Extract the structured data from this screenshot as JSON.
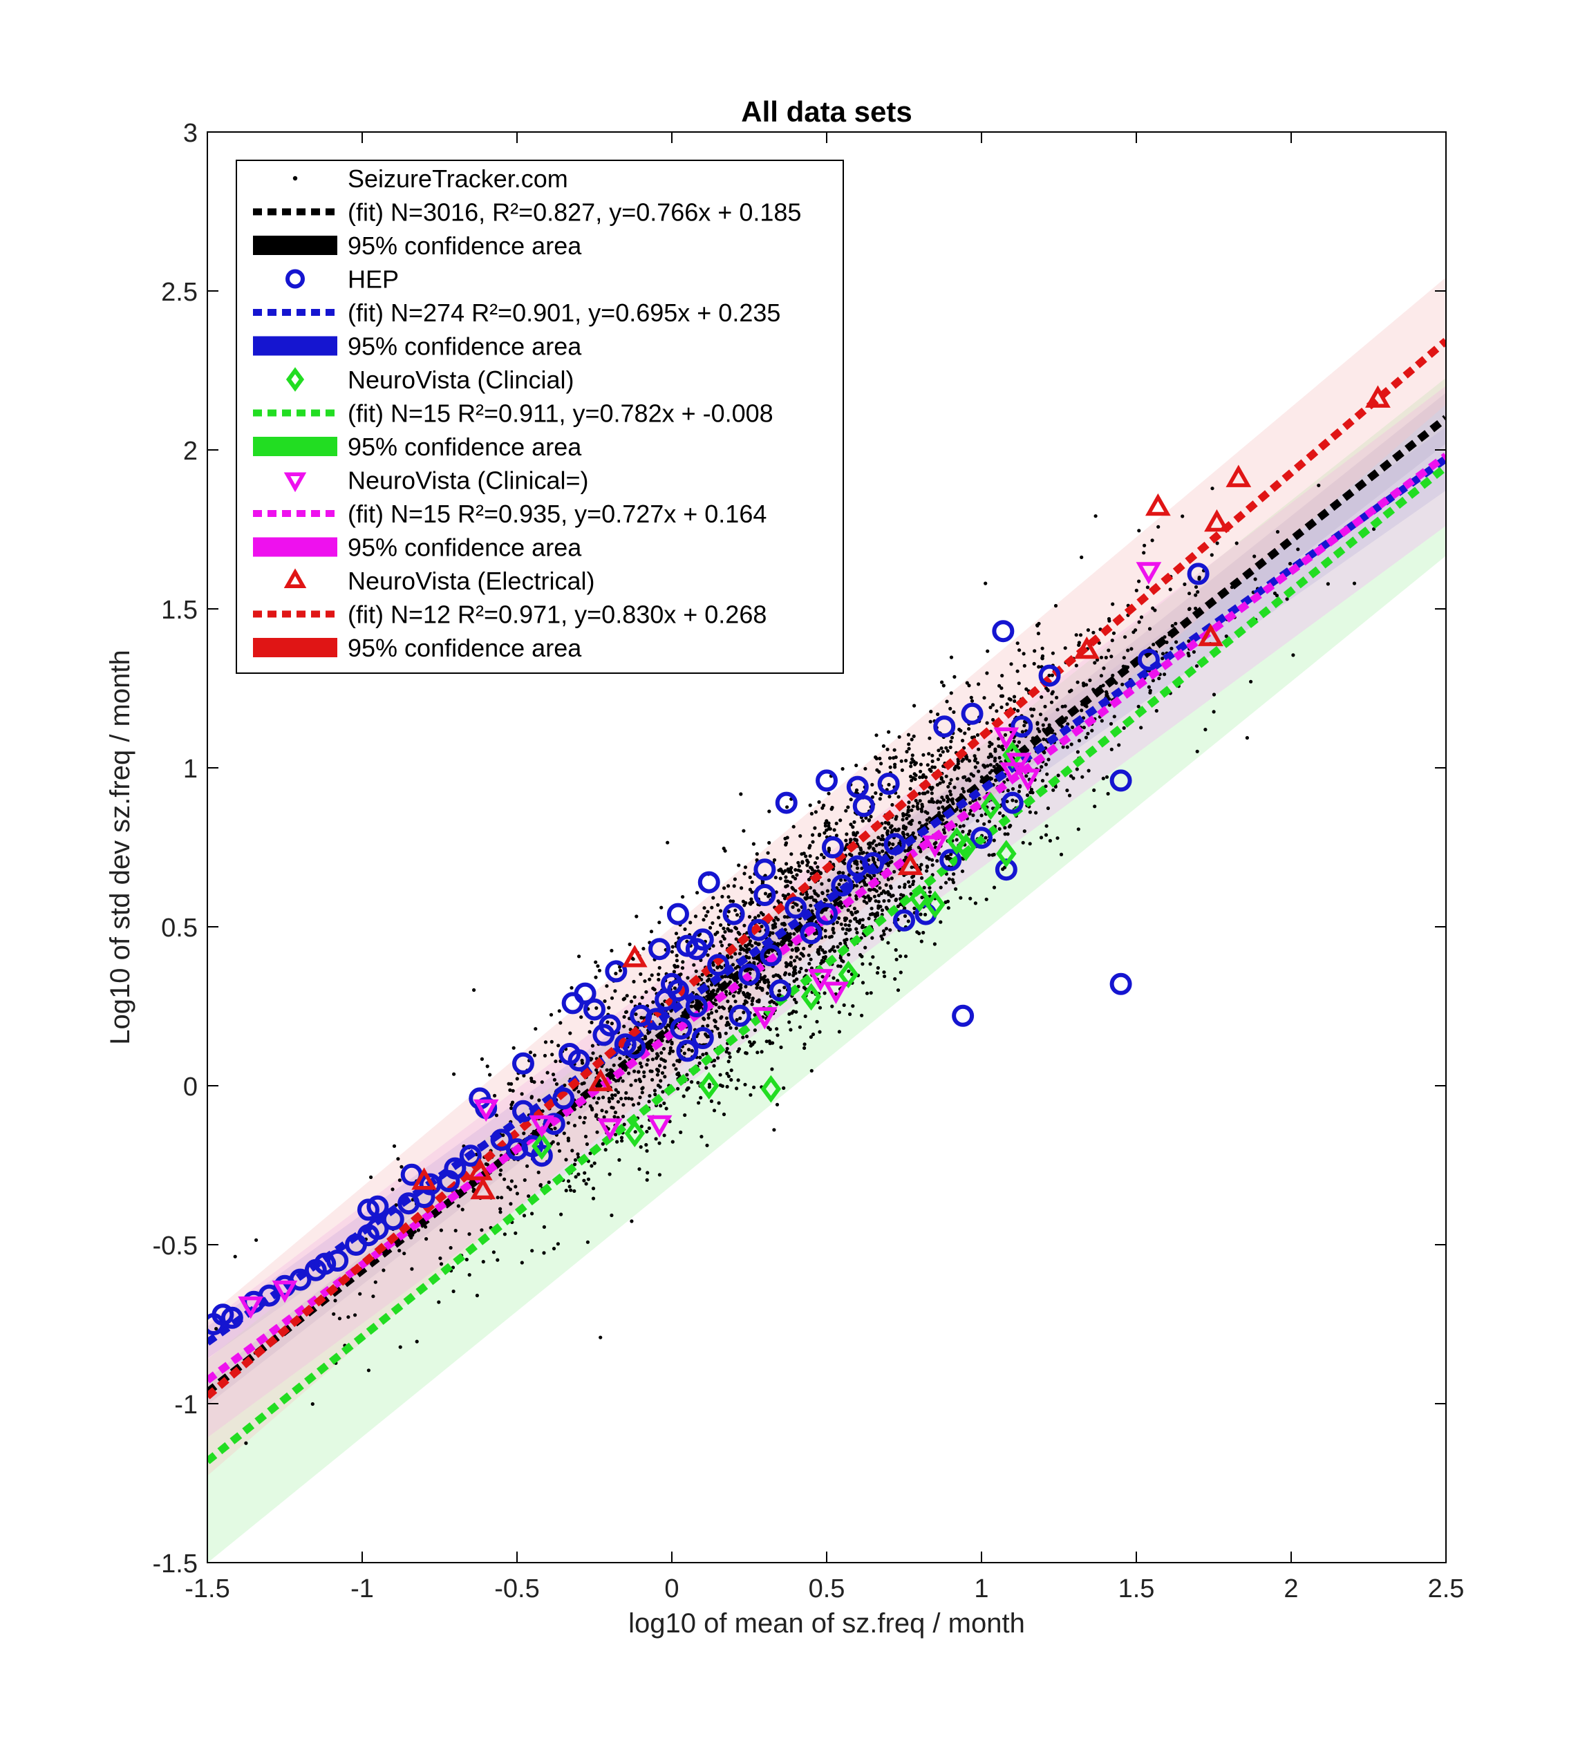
{
  "chart_data": {
    "type": "scatter",
    "title": "All data sets",
    "xlabel": "log10 of mean of sz.freq / month",
    "ylabel": "Log10 of std dev sz.freq / month",
    "xlim": [
      -1.5,
      2.5
    ],
    "ylim": [
      -1.5,
      3
    ],
    "xticks": [
      -1.5,
      -1,
      -0.5,
      0,
      0.5,
      1,
      1.5,
      2,
      2.5
    ],
    "xtick_labels": [
      "-1.5",
      "-1",
      "-0.5",
      "0",
      "0.5",
      "1",
      "1.5",
      "2",
      "2.5"
    ],
    "yticks": [
      -1.5,
      -1,
      -0.5,
      0,
      0.5,
      1,
      1.5,
      2,
      2.5,
      3
    ],
    "ytick_labels": [
      "-1.5",
      "-1",
      "-0.5",
      "0",
      "0.5",
      "1",
      "1.5",
      "2",
      "2.5",
      "3"
    ],
    "grid": false,
    "legend_position": "top-left",
    "legend": [
      {
        "label": "SeizureTracker.com",
        "symbol": "dot",
        "color": "#000000"
      },
      {
        "label": "(fit) N=3016, R²=0.827, y=0.766x + 0.185",
        "symbol": "dashed-line",
        "color": "#000000"
      },
      {
        "label": "95% confidence area",
        "symbol": "band",
        "color": "#000000"
      },
      {
        "label": "HEP",
        "symbol": "circle",
        "color": "#1515d0"
      },
      {
        "label": "(fit) N=274 R²=0.901, y=0.695x + 0.235",
        "symbol": "dashed-line",
        "color": "#1515d0"
      },
      {
        "label": "95% confidence area",
        "symbol": "band",
        "color": "#1515d0"
      },
      {
        "label": "NeuroVista (Clincial)",
        "symbol": "diamond",
        "color": "#22dd22"
      },
      {
        "label": "(fit) N=15 R²=0.911, y=0.782x + -0.008",
        "symbol": "dashed-line",
        "color": "#22dd22"
      },
      {
        "label": "95% confidence area",
        "symbol": "band",
        "color": "#22dd22"
      },
      {
        "label": "NeuroVista (Clinical=)",
        "symbol": "triangle-down",
        "color": "#ee11ee"
      },
      {
        "label": "(fit) N=15 R²=0.935, y=0.727x + 0.164",
        "symbol": "dashed-line",
        "color": "#ee11ee"
      },
      {
        "label": "95% confidence area",
        "symbol": "band",
        "color": "#ee11ee"
      },
      {
        "label": "NeuroVista (Electrical)",
        "symbol": "triangle-up",
        "color": "#e01515"
      },
      {
        "label": "(fit) N=12 R²=0.971, y=0.830x + 0.268",
        "symbol": "dashed-line",
        "color": "#e01515"
      },
      {
        "label": "95% confidence area",
        "symbol": "band",
        "color": "#e01515"
      }
    ],
    "fits": [
      {
        "name": "SeizureTracker.com",
        "slope": 0.766,
        "intercept": 0.185,
        "color": "#000000",
        "band_color": "#8a8ab0",
        "band_halfwidth": [
          0.04,
          0.08
        ]
      },
      {
        "name": "HEP",
        "slope": 0.695,
        "intercept": 0.235,
        "color": "#1515d0",
        "band_color": "#9a9ae0",
        "band_halfwidth": [
          0.05,
          0.1
        ]
      },
      {
        "name": "NeuroVista (Clincial)",
        "slope": 0.782,
        "intercept": -0.008,
        "color": "#22dd22",
        "band_color": "#b0f0b0",
        "band_halfwidth": [
          0.32,
          0.28
        ]
      },
      {
        "name": "NeuroVista (Clinical=)",
        "slope": 0.727,
        "intercept": 0.164,
        "color": "#ee11ee",
        "band_color": "#f4b0f4",
        "band_halfwidth": [
          0.18,
          0.22
        ]
      },
      {
        "name": "NeuroVista (Electrical)",
        "slope": 0.83,
        "intercept": 0.268,
        "color": "#e01515",
        "band_color": "#f6c4c4",
        "band_halfwidth": [
          0.25,
          0.2
        ]
      }
    ],
    "series": [
      {
        "name": "HEP",
        "marker": "circle",
        "color": "#1515d0",
        "points": [
          [
            -1.48,
            -0.75
          ],
          [
            -1.45,
            -0.72
          ],
          [
            -1.42,
            -0.73
          ],
          [
            -1.35,
            -0.68
          ],
          [
            -1.3,
            -0.66
          ],
          [
            -1.25,
            -0.63
          ],
          [
            -1.2,
            -0.61
          ],
          [
            -1.15,
            -0.58
          ],
          [
            -1.12,
            -0.56
          ],
          [
            -1.08,
            -0.55
          ],
          [
            -1.02,
            -0.5
          ],
          [
            -0.98,
            -0.47
          ],
          [
            -0.95,
            -0.45
          ],
          [
            -0.98,
            -0.39
          ],
          [
            -0.95,
            -0.38
          ],
          [
            -0.9,
            -0.42
          ],
          [
            -0.85,
            -0.37
          ],
          [
            -0.84,
            -0.28
          ],
          [
            -0.8,
            -0.35
          ],
          [
            -0.78,
            -0.31
          ],
          [
            -0.72,
            -0.3
          ],
          [
            -0.7,
            -0.26
          ],
          [
            -0.65,
            -0.22
          ],
          [
            -0.62,
            -0.04
          ],
          [
            -0.6,
            -0.07
          ],
          [
            -0.55,
            -0.17
          ],
          [
            -0.5,
            -0.2
          ],
          [
            -0.48,
            -0.08
          ],
          [
            -0.48,
            0.07
          ],
          [
            -0.45,
            -0.19
          ],
          [
            -0.42,
            -0.22
          ],
          [
            -0.38,
            -0.12
          ],
          [
            -0.35,
            -0.04
          ],
          [
            -0.33,
            0.1
          ],
          [
            -0.3,
            0.08
          ],
          [
            -0.32,
            0.26
          ],
          [
            -0.28,
            0.29
          ],
          [
            -0.25,
            0.24
          ],
          [
            -0.22,
            0.16
          ],
          [
            -0.2,
            0.19
          ],
          [
            -0.18,
            0.36
          ],
          [
            -0.15,
            0.13
          ],
          [
            -0.12,
            0.12
          ],
          [
            -0.1,
            0.22
          ],
          [
            -0.05,
            0.21
          ],
          [
            -0.04,
            0.43
          ],
          [
            -0.02,
            0.27
          ],
          [
            0.0,
            0.32
          ],
          [
            0.02,
            0.3
          ],
          [
            0.03,
            0.18
          ],
          [
            0.02,
            0.54
          ],
          [
            0.05,
            0.44
          ],
          [
            0.08,
            0.43
          ],
          [
            0.1,
            0.46
          ],
          [
            0.08,
            0.25
          ],
          [
            0.05,
            0.11
          ],
          [
            0.1,
            0.15
          ],
          [
            0.12,
            0.64
          ],
          [
            0.15,
            0.38
          ],
          [
            0.2,
            0.54
          ],
          [
            0.22,
            0.22
          ],
          [
            0.25,
            0.35
          ],
          [
            0.28,
            0.49
          ],
          [
            0.3,
            0.6
          ],
          [
            0.3,
            0.68
          ],
          [
            0.32,
            0.41
          ],
          [
            0.35,
            0.3
          ],
          [
            0.37,
            0.89
          ],
          [
            0.4,
            0.56
          ],
          [
            0.45,
            0.48
          ],
          [
            0.5,
            0.54
          ],
          [
            0.5,
            0.96
          ],
          [
            0.52,
            0.75
          ],
          [
            0.55,
            0.63
          ],
          [
            0.6,
            0.69
          ],
          [
            0.6,
            0.94
          ],
          [
            0.62,
            0.88
          ],
          [
            0.65,
            0.7
          ],
          [
            0.7,
            0.95
          ],
          [
            0.72,
            0.76
          ],
          [
            0.75,
            0.52
          ],
          [
            0.82,
            0.54
          ],
          [
            0.88,
            1.13
          ],
          [
            0.9,
            0.71
          ],
          [
            0.94,
            0.22
          ],
          [
            0.97,
            1.17
          ],
          [
            1.0,
            0.78
          ],
          [
            1.07,
            1.43
          ],
          [
            1.08,
            0.68
          ],
          [
            1.1,
            0.89
          ],
          [
            1.13,
            1.13
          ],
          [
            1.22,
            1.29
          ],
          [
            1.45,
            0.96
          ],
          [
            1.45,
            0.32
          ],
          [
            1.54,
            1.34
          ],
          [
            1.7,
            1.61
          ]
        ]
      },
      {
        "name": "NeuroVista (Clincial)",
        "marker": "diamond",
        "color": "#22dd22",
        "points": [
          [
            -0.42,
            -0.19
          ],
          [
            -0.12,
            -0.15
          ],
          [
            0.12,
            0.0
          ],
          [
            0.32,
            -0.01
          ],
          [
            0.45,
            0.28
          ],
          [
            0.57,
            0.35
          ],
          [
            0.8,
            0.59
          ],
          [
            0.85,
            0.57
          ],
          [
            0.92,
            0.77
          ],
          [
            0.95,
            0.75
          ],
          [
            1.03,
            0.88
          ],
          [
            1.08,
            0.73
          ],
          [
            1.1,
            1.04
          ]
        ]
      },
      {
        "name": "NeuroVista (Clinical=)",
        "marker": "triangle-down",
        "color": "#ee11ee",
        "points": [
          [
            -1.36,
            -0.69
          ],
          [
            -1.25,
            -0.64
          ],
          [
            -0.6,
            -0.07
          ],
          [
            -0.42,
            -0.12
          ],
          [
            -0.2,
            -0.13
          ],
          [
            -0.04,
            -0.12
          ],
          [
            0.3,
            0.22
          ],
          [
            0.48,
            0.34
          ],
          [
            0.53,
            0.3
          ],
          [
            0.85,
            0.76
          ],
          [
            1.08,
            1.1
          ],
          [
            1.1,
            0.99
          ],
          [
            1.12,
            1.02
          ],
          [
            1.15,
            0.97
          ],
          [
            1.54,
            1.62
          ]
        ]
      },
      {
        "name": "NeuroVista (Electrical)",
        "marker": "triangle-up",
        "color": "#e01515",
        "points": [
          [
            -0.8,
            -0.3
          ],
          [
            -0.62,
            -0.27
          ],
          [
            -0.61,
            -0.33
          ],
          [
            -0.23,
            0.01
          ],
          [
            -0.12,
            0.4
          ],
          [
            0.77,
            0.69
          ],
          [
            1.34,
            1.37
          ],
          [
            1.57,
            1.82
          ],
          [
            1.74,
            1.41
          ],
          [
            1.76,
            1.77
          ],
          [
            1.83,
            1.91
          ],
          [
            2.28,
            2.16
          ]
        ]
      }
    ],
    "scatter_background": {
      "name": "SeizureTracker.com",
      "marker": "dot",
      "color": "#000000",
      "n": 3016,
      "slope": 0.766,
      "intercept": 0.185,
      "x_mean": 0.45,
      "x_sd": 0.55,
      "x_range": [
        -1.48,
        2.48
      ],
      "residual_sd": 0.17,
      "seed": 7
    }
  }
}
